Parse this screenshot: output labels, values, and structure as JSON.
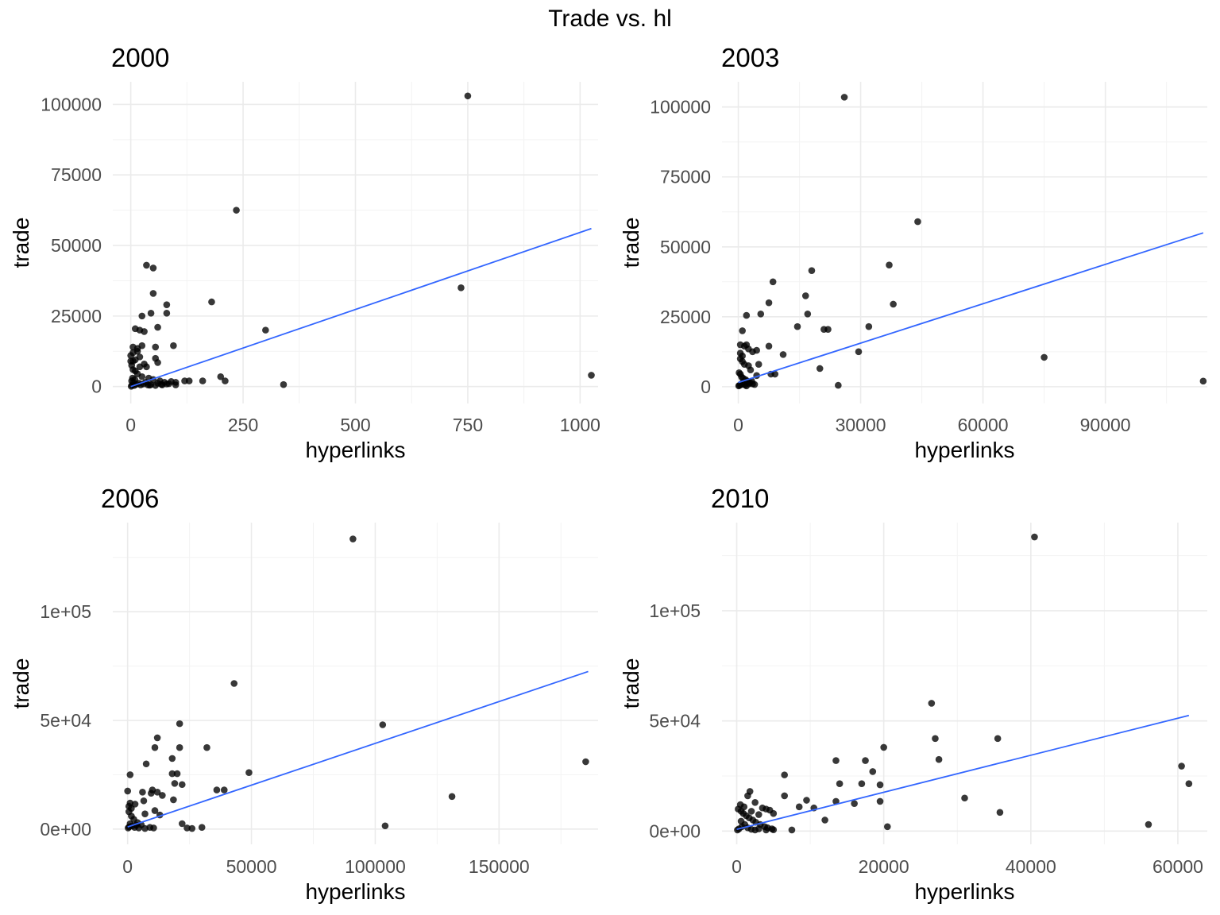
{
  "title": "Trade vs. hl",
  "chart_data": [
    {
      "type": "scatter",
      "title": "2000",
      "xlabel": "hyperlinks",
      "ylabel": "trade",
      "xlim": [
        -40,
        1040
      ],
      "ylim": [
        -6000,
        108000
      ],
      "xticks": [
        0,
        250,
        500,
        750,
        1000
      ],
      "xtick_labels": [
        "0",
        "250",
        "500",
        "750",
        "1000"
      ],
      "yticks": [
        0,
        25000,
        50000,
        75000,
        100000
      ],
      "ytick_labels": [
        "0",
        "25000",
        "50000",
        "75000",
        "100000"
      ],
      "grid": true,
      "trend": [
        [
          0,
          0
        ],
        [
          1025,
          56000
        ]
      ],
      "points": [
        [
          750,
          103000
        ],
        [
          235,
          62500
        ],
        [
          735,
          35000
        ],
        [
          1025,
          4000
        ],
        [
          340,
          700
        ],
        [
          300,
          20000
        ],
        [
          180,
          30000
        ],
        [
          200,
          3500
        ],
        [
          210,
          2000
        ],
        [
          160,
          2000
        ],
        [
          120,
          2000
        ],
        [
          130,
          2000
        ],
        [
          100,
          1500
        ],
        [
          90,
          1800
        ],
        [
          95,
          14500
        ],
        [
          35,
          43000
        ],
        [
          50,
          42000
        ],
        [
          50,
          33000
        ],
        [
          80,
          29000
        ],
        [
          80,
          26000
        ],
        [
          45,
          26000
        ],
        [
          60,
          21000
        ],
        [
          25,
          25000
        ],
        [
          10,
          20500
        ],
        [
          20,
          20000
        ],
        [
          30,
          19500
        ],
        [
          5,
          14000
        ],
        [
          15,
          13500
        ],
        [
          25,
          14500
        ],
        [
          55,
          14000
        ],
        [
          15,
          12500
        ],
        [
          5,
          12000
        ],
        [
          20,
          10500
        ],
        [
          55,
          10000
        ],
        [
          10,
          9500
        ],
        [
          5,
          9000
        ],
        [
          60,
          8500
        ],
        [
          30,
          8000
        ],
        [
          20,
          7000
        ],
        [
          35,
          7000
        ],
        [
          5,
          6000
        ],
        [
          10,
          5500
        ],
        [
          15,
          4500
        ],
        [
          25,
          3500
        ],
        [
          40,
          3000
        ],
        [
          50,
          2500
        ],
        [
          65,
          2000
        ],
        [
          75,
          1500
        ],
        [
          85,
          1000
        ],
        [
          3,
          500
        ],
        [
          8,
          400
        ],
        [
          12,
          800
        ],
        [
          18,
          1200
        ],
        [
          22,
          600
        ],
        [
          28,
          900
        ],
        [
          33,
          1500
        ],
        [
          38,
          600
        ],
        [
          45,
          700
        ],
        [
          55,
          400
        ],
        [
          70,
          600
        ],
        [
          80,
          900
        ],
        [
          1,
          100
        ],
        [
          2,
          2000
        ],
        [
          4,
          3000
        ],
        [
          6,
          1500
        ],
        [
          9,
          2500
        ],
        [
          0,
          11000
        ],
        [
          0,
          9000
        ],
        [
          2,
          7500
        ],
        [
          42,
          500
        ],
        [
          60,
          1200
        ],
        [
          68,
          800
        ],
        [
          100,
          600
        ]
      ]
    },
    {
      "type": "scatter",
      "title": "2003",
      "xlabel": "hyperlinks",
      "ylabel": "trade",
      "xlim": [
        -4000,
        115000
      ],
      "ylim": [
        -6000,
        109000
      ],
      "xticks": [
        0,
        30000,
        60000,
        90000
      ],
      "xtick_labels": [
        "0",
        "30000",
        "60000",
        "90000"
      ],
      "yticks": [
        0,
        25000,
        50000,
        75000,
        100000
      ],
      "ytick_labels": [
        "0",
        "25000",
        "50000",
        "75000",
        "100000"
      ],
      "grid": true,
      "trend": [
        [
          0,
          1500
        ],
        [
          114000,
          55000
        ]
      ],
      "points": [
        [
          26000,
          103500
        ],
        [
          44000,
          59000
        ],
        [
          37000,
          43500
        ],
        [
          18000,
          41500
        ],
        [
          38000,
          29500
        ],
        [
          8500,
          37500
        ],
        [
          16500,
          32500
        ],
        [
          7500,
          30000
        ],
        [
          17000,
          26000
        ],
        [
          5500,
          26000
        ],
        [
          2000,
          25500
        ],
        [
          14500,
          21500
        ],
        [
          21000,
          20500
        ],
        [
          22000,
          20500
        ],
        [
          32000,
          21500
        ],
        [
          1000,
          20000
        ],
        [
          500,
          15000
        ],
        [
          1500,
          14500
        ],
        [
          2000,
          15000
        ],
        [
          2500,
          13500
        ],
        [
          3500,
          12500
        ],
        [
          4500,
          13000
        ],
        [
          11000,
          11500
        ],
        [
          7500,
          14500
        ],
        [
          29500,
          12500
        ],
        [
          75000,
          10500
        ],
        [
          114000,
          2000
        ],
        [
          24500,
          500
        ],
        [
          20000,
          6500
        ],
        [
          8000,
          4500
        ],
        [
          5000,
          8000
        ],
        [
          500,
          10000
        ],
        [
          1000,
          9000
        ],
        [
          1500,
          8000
        ],
        [
          2500,
          7500
        ],
        [
          3000,
          6000
        ],
        [
          200,
          5000
        ],
        [
          500,
          4500
        ],
        [
          800,
          3500
        ],
        [
          1200,
          3000
        ],
        [
          1800,
          2500
        ],
        [
          2200,
          2000
        ],
        [
          2800,
          1500
        ],
        [
          3500,
          1000
        ],
        [
          4000,
          800
        ],
        [
          100,
          300
        ],
        [
          300,
          500
        ],
        [
          600,
          700
        ],
        [
          900,
          1200
        ],
        [
          1300,
          900
        ],
        [
          1700,
          600
        ],
        [
          2000,
          300
        ],
        [
          2600,
          1000
        ],
        [
          3300,
          2000
        ],
        [
          500,
          12000
        ],
        [
          1000,
          11000
        ],
        [
          4500,
          4000
        ],
        [
          9000,
          4500
        ]
      ]
    },
    {
      "type": "scatter",
      "title": "2006",
      "xlabel": "hyperlinks",
      "ylabel": "trade",
      "xlim": [
        -6000,
        190000
      ],
      "ylim": [
        -7000,
        141000
      ],
      "xticks": [
        0,
        50000,
        100000,
        150000
      ],
      "xtick_labels": [
        "0",
        "50000",
        "100000",
        "150000"
      ],
      "yticks": [
        0,
        50000,
        100000
      ],
      "ytick_labels": [
        "0e+00",
        "5e+04",
        "1e+05"
      ],
      "grid": true,
      "trend": [
        [
          0,
          1000
        ],
        [
          186000,
          72500
        ]
      ],
      "points": [
        [
          91000,
          133500
        ],
        [
          43000,
          67000
        ],
        [
          103000,
          48000
        ],
        [
          185000,
          31000
        ],
        [
          131000,
          15000
        ],
        [
          104000,
          1500
        ],
        [
          49000,
          26000
        ],
        [
          32000,
          37500
        ],
        [
          36000,
          18000
        ],
        [
          39000,
          18000
        ],
        [
          21000,
          48500
        ],
        [
          12000,
          42000
        ],
        [
          21000,
          37500
        ],
        [
          11000,
          37500
        ],
        [
          18000,
          32500
        ],
        [
          7500,
          30000
        ],
        [
          1000,
          25000
        ],
        [
          18000,
          25500
        ],
        [
          20000,
          25500
        ],
        [
          22000,
          20500
        ],
        [
          19000,
          21000
        ],
        [
          10000,
          18000
        ],
        [
          12000,
          17000
        ],
        [
          9500,
          16500
        ],
        [
          6000,
          17000
        ],
        [
          14000,
          15500
        ],
        [
          18500,
          13500
        ],
        [
          0,
          17500
        ],
        [
          1000,
          12000
        ],
        [
          3000,
          11500
        ],
        [
          6500,
          13000
        ],
        [
          500,
          10500
        ],
        [
          1500,
          9500
        ],
        [
          7000,
          7000
        ],
        [
          11000,
          8500
        ],
        [
          13000,
          6500
        ],
        [
          22000,
          2500
        ],
        [
          24000,
          500
        ],
        [
          26000,
          300
        ],
        [
          30000,
          800
        ],
        [
          9000,
          800
        ],
        [
          10500,
          500
        ],
        [
          7000,
          300
        ],
        [
          500,
          8000
        ],
        [
          1500,
          6000
        ],
        [
          2500,
          4500
        ],
        [
          4000,
          3000
        ],
        [
          5500,
          2000
        ],
        [
          200,
          500
        ],
        [
          600,
          1000
        ],
        [
          1000,
          2500
        ],
        [
          1800,
          1500
        ],
        [
          2800,
          800
        ],
        [
          3500,
          1800
        ],
        [
          4500,
          500
        ]
      ]
    },
    {
      "type": "scatter",
      "title": "2010",
      "xlabel": "hyperlinks",
      "ylabel": "trade",
      "xlim": [
        -2000,
        64000
      ],
      "ylim": [
        -6000,
        140000
      ],
      "xticks": [
        0,
        20000,
        40000,
        60000
      ],
      "xtick_labels": [
        "0",
        "20000",
        "40000",
        "60000"
      ],
      "yticks": [
        0,
        50000,
        100000
      ],
      "ytick_labels": [
        "0e+00",
        "5e+04",
        "1e+05"
      ],
      "grid": true,
      "trend": [
        [
          0,
          800
        ],
        [
          61500,
          52500
        ]
      ],
      "points": [
        [
          40500,
          133500
        ],
        [
          26500,
          58000
        ],
        [
          27000,
          42000
        ],
        [
          35500,
          42000
        ],
        [
          20000,
          38000
        ],
        [
          17500,
          32000
        ],
        [
          13500,
          32000
        ],
        [
          27500,
          32500
        ],
        [
          18500,
          27000
        ],
        [
          17000,
          21500
        ],
        [
          19500,
          21000
        ],
        [
          14000,
          21500
        ],
        [
          6500,
          25500
        ],
        [
          6500,
          16000
        ],
        [
          60500,
          29500
        ],
        [
          61500,
          21500
        ],
        [
          31000,
          15000
        ],
        [
          19500,
          13500
        ],
        [
          16000,
          12500
        ],
        [
          13500,
          13500
        ],
        [
          9500,
          14000
        ],
        [
          8500,
          11000
        ],
        [
          10500,
          10500
        ],
        [
          35800,
          8500
        ],
        [
          56000,
          3000
        ],
        [
          20500,
          2000
        ],
        [
          7500,
          500
        ],
        [
          12000,
          5000
        ],
        [
          4000,
          10000
        ],
        [
          3500,
          10500
        ],
        [
          4500,
          9500
        ],
        [
          2500,
          13000
        ],
        [
          1500,
          16000
        ],
        [
          1800,
          18000
        ],
        [
          5000,
          8000
        ],
        [
          2000,
          9000
        ],
        [
          3000,
          7500
        ],
        [
          500,
          12000
        ],
        [
          1000,
          11000
        ],
        [
          200,
          10000
        ],
        [
          600,
          9000
        ],
        [
          900,
          8000
        ],
        [
          1300,
          7000
        ],
        [
          1700,
          6000
        ],
        [
          2200,
          5000
        ],
        [
          2600,
          4000
        ],
        [
          3200,
          3000
        ],
        [
          3800,
          2000
        ],
        [
          4200,
          1500
        ],
        [
          4800,
          1000
        ],
        [
          100,
          500
        ],
        [
          300,
          1000
        ],
        [
          700,
          2000
        ],
        [
          1100,
          3000
        ],
        [
          1500,
          1500
        ],
        [
          2000,
          800
        ],
        [
          2500,
          500
        ],
        [
          3000,
          1000
        ],
        [
          4000,
          500
        ],
        [
          5000,
          600
        ],
        [
          600,
          4500
        ]
      ]
    }
  ]
}
